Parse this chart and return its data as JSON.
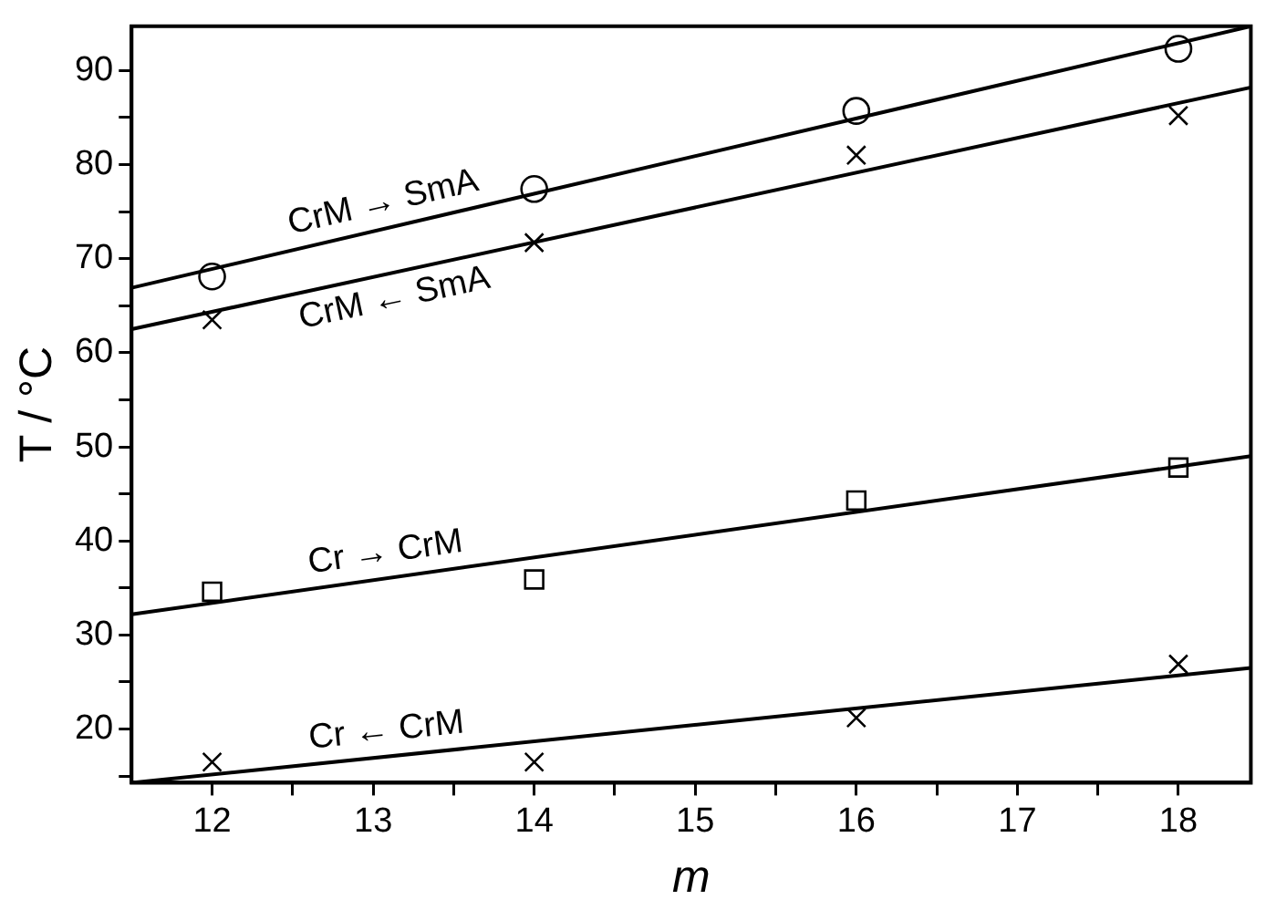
{
  "chart_data": {
    "type": "scatter",
    "xlabel": "m",
    "ylabel": "T / °C",
    "xlim": [
      11.5,
      18.45
    ],
    "xticks": [
      12,
      {
        "value": 12.5,
        "label": null
      },
      13,
      {
        "value": 13.5,
        "label": null
      },
      14,
      {
        "value": 14.5,
        "label": null
      },
      15,
      {
        "value": 15.5,
        "label": null
      },
      16,
      {
        "value": 16.5,
        "label": null
      },
      17,
      {
        "value": 17.5,
        "label": null
      },
      18
    ],
    "ylim": [
      14.3,
      94.7
    ],
    "yticks": [
      {
        "value": 15,
        "label": null
      },
      20,
      {
        "value": 25,
        "label": null
      },
      30,
      {
        "value": 35,
        "label": null
      },
      40,
      {
        "value": 45,
        "label": null
      },
      50,
      {
        "value": 55,
        "label": null
      },
      60,
      {
        "value": 65,
        "label": null
      },
      70,
      {
        "value": 75,
        "label": null
      },
      80,
      {
        "value": 85,
        "label": null
      },
      90
    ],
    "grid": false,
    "legend": false,
    "series": [
      {
        "marker": "circle",
        "color": "#000000",
        "x": [
          12,
          14,
          16,
          18
        ],
        "values": [
          68.1,
          77.4,
          85.7,
          92.3
        ]
      },
      {
        "marker": "cross",
        "color": "#000000",
        "x": [
          12,
          14,
          16,
          18
        ],
        "values": [
          63.5,
          71.7,
          81.0,
          85.2
        ]
      },
      {
        "marker": "square",
        "color": "#000000",
        "x": [
          12,
          14,
          16,
          18
        ],
        "values": [
          34.6,
          35.9,
          44.3,
          47.8
        ]
      },
      {
        "marker": "cross",
        "color": "#000000",
        "x": [
          12,
          14,
          16,
          18
        ],
        "values": [
          16.5,
          16.5,
          21.2,
          26.9
        ]
      },
      {
        "type": "line",
        "name": "CrM → SmA",
        "marker": "none",
        "line_style": "solid",
        "color": "#000000",
        "x": [
          11.5,
          18.45
        ],
        "values": [
          66.9,
          94.7
        ]
      },
      {
        "type": "line",
        "name": "CrM ← SmA",
        "marker": "none",
        "line_style": "solid",
        "color": "#000000",
        "x": [
          11.5,
          18.45
        ],
        "values": [
          62.5,
          88.2
        ]
      },
      {
        "type": "line",
        "name": "Cr → CrM",
        "marker": "none",
        "line_style": "solid",
        "color": "#000000",
        "x": [
          11.5,
          18.45
        ],
        "values": [
          32.2,
          49.0
        ]
      },
      {
        "type": "line",
        "name": "Cr ← CrM",
        "marker": "none",
        "line_style": "solid",
        "color": "#000000",
        "x": [
          11.5,
          18.45
        ],
        "values": [
          14.3,
          26.5
        ]
      }
    ]
  }
}
